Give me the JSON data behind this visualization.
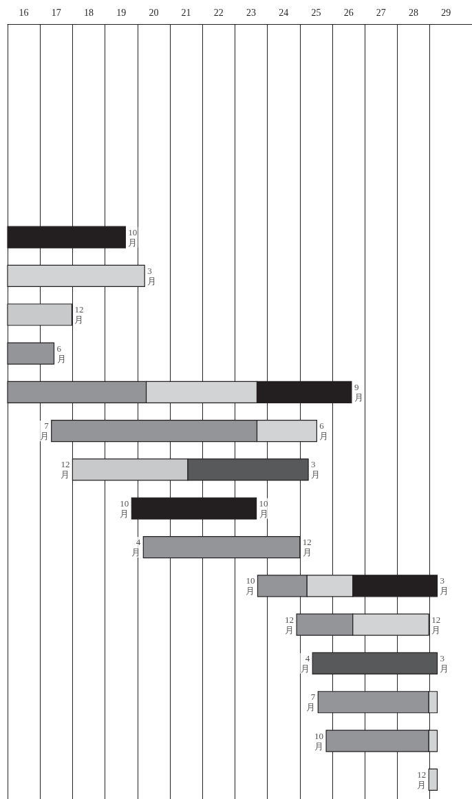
{
  "chart_data": {
    "type": "bar",
    "orientation": "horizontal",
    "categories": [
      null,
      null,
      null,
      null,
      null,
      null,
      null,
      null,
      null,
      null,
      null,
      null,
      null,
      null,
      null,
      null,
      null,
      null,
      null,
      null
    ],
    "series": [
      {
        "color": "#939598",
        "base": [
          null,
          null,
          null,
          null,
          null,
          null,
          null,
          null,
          16,
          16,
          17.35,
          null,
          null,
          20.18,
          23.7,
          24.9,
          null,
          25.56,
          25.81,
          null
        ],
        "values": [
          null,
          null,
          null,
          null,
          null,
          null,
          null,
          null,
          1.43,
          4.27,
          6.33,
          null,
          null,
          4.82,
          1.52,
          1.73,
          null,
          3.41,
          3.16,
          null
        ]
      },
      {
        "color": "#c8c9ca",
        "base": [
          null,
          null,
          null,
          null,
          null,
          null,
          null,
          16,
          null,
          null,
          null,
          18.0,
          null,
          null,
          null,
          null,
          null,
          null,
          null,
          null
        ],
        "values": [
          null,
          null,
          null,
          null,
          null,
          null,
          null,
          1.98,
          null,
          null,
          null,
          3.55,
          null,
          null,
          null,
          null,
          null,
          null,
          null,
          null
        ]
      },
      {
        "color": "#d1d3d4",
        "base": [
          null,
          null,
          null,
          null,
          null,
          null,
          16,
          null,
          null,
          20.27,
          23.68,
          null,
          null,
          null,
          25.22,
          26.63,
          null,
          28.97,
          28.97,
          28.97
        ],
        "values": [
          null,
          null,
          null,
          null,
          null,
          null,
          4.22,
          null,
          null,
          3.41,
          1.84,
          null,
          null,
          null,
          1.41,
          2.34,
          null,
          0.26,
          0.26,
          0.26
        ]
      },
      {
        "color": "#58595b",
        "base": [
          null,
          null,
          null,
          null,
          null,
          null,
          null,
          null,
          null,
          null,
          null,
          21.55,
          null,
          null,
          null,
          null,
          25.39,
          null,
          null,
          null
        ],
        "values": [
          null,
          null,
          null,
          null,
          null,
          null,
          null,
          null,
          null,
          null,
          null,
          3.71,
          null,
          null,
          null,
          null,
          3.84,
          null,
          null,
          null
        ]
      },
      {
        "color": "#231f20",
        "base": [
          null,
          null,
          null,
          null,
          null,
          16,
          null,
          null,
          null,
          23.68,
          null,
          null,
          19.82,
          null,
          26.63,
          null,
          null,
          null,
          null,
          null
        ],
        "values": [
          null,
          null,
          null,
          null,
          null,
          3.63,
          null,
          null,
          null,
          2.91,
          null,
          null,
          3.84,
          null,
          2.6,
          null,
          null,
          null,
          null,
          null
        ]
      }
    ],
    "xlim": [
      16,
      30.3
    ],
    "xticks": [
      {
        "value": 16,
        "label": null
      },
      {
        "value": 16.5,
        "label": "16"
      },
      {
        "value": 17,
        "label": null
      },
      {
        "value": 17.5,
        "label": "17"
      },
      {
        "value": 18,
        "label": null
      },
      {
        "value": 18.5,
        "label": "18"
      },
      {
        "value": 19,
        "label": null
      },
      {
        "value": 19.5,
        "label": "19"
      },
      {
        "value": 20,
        "label": null
      },
      {
        "value": 20.5,
        "label": "20"
      },
      {
        "value": 21,
        "label": null
      },
      {
        "value": 21.5,
        "label": "21"
      },
      {
        "value": 22,
        "label": null
      },
      {
        "value": 22.5,
        "label": "22"
      },
      {
        "value": 23,
        "label": null
      },
      {
        "value": 23.5,
        "label": "23"
      },
      {
        "value": 24,
        "label": null
      },
      {
        "value": 24.5,
        "label": "24"
      },
      {
        "value": 25,
        "label": null
      },
      {
        "value": 25.5,
        "label": "25"
      },
      {
        "value": 26,
        "label": null
      },
      {
        "value": 26.5,
        "label": "26"
      },
      {
        "value": 27,
        "label": null
      },
      {
        "value": 27.5,
        "label": "27"
      },
      {
        "value": 28,
        "label": null
      },
      {
        "value": 28.5,
        "label": "28"
      },
      {
        "value": 29,
        "label": null
      },
      {
        "value": 29.5,
        "label": "29"
      }
    ],
    "grid": "x",
    "annotations": [
      {
        "text": "10月",
        "x": 19.63
      },
      {
        "text": "3月",
        "x": 20.22
      },
      {
        "text": "12月",
        "x": 17.98
      },
      {
        "text": "6月",
        "x": 17.43
      },
      {
        "text": "9月",
        "x": 26.59
      },
      {
        "text": "7月",
        "x": 17.35
      },
      {
        "text": "6月",
        "x": 25.52
      },
      {
        "text": "12月",
        "x": 18.0
      },
      {
        "text": "3月",
        "x": 25.26
      },
      {
        "text": "10月",
        "x": 19.82
      },
      {
        "text": "10月",
        "x": 23.66
      },
      {
        "text": "4月",
        "x": 20.18
      },
      {
        "text": "12月",
        "x": 25.0
      },
      {
        "text": "10月",
        "x": 23.7
      },
      {
        "text": "3月",
        "x": 29.23
      },
      {
        "text": "12月",
        "x": 24.9
      },
      {
        "text": "12月",
        "x": 28.97
      },
      {
        "text": "4月",
        "x": 25.39
      },
      {
        "text": "3月",
        "x": 29.23
      },
      {
        "text": "7月",
        "x": 25.56
      },
      {
        "text": "10月",
        "x": 25.81
      },
      {
        "text": "12月",
        "x": 28.97
      }
    ]
  }
}
